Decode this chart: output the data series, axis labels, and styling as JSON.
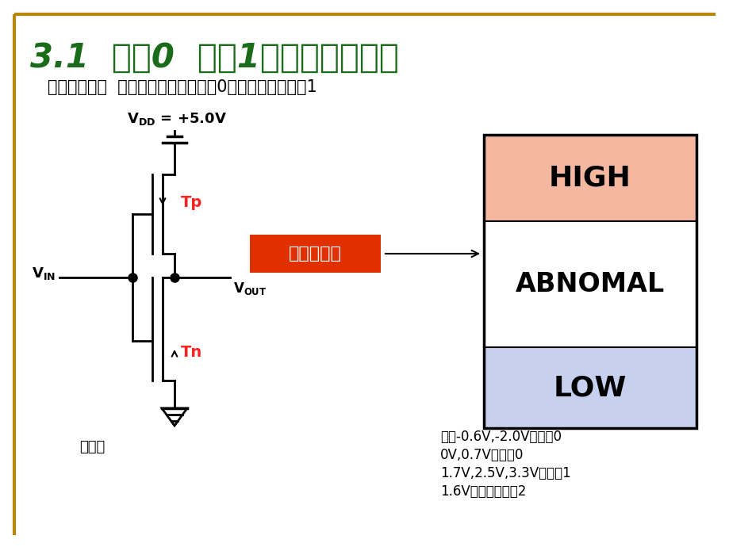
{
  "title": "3.1  逻辑0  逻辑1以及不确定逻辑",
  "title_color": "#1a6b1a",
  "subtitle": "不确定逻辑：  电路可将其解释为逻辑0也可以解释为逻辑1",
  "subtitle_color": "#000000",
  "bg_color": "#ffffff",
  "border_color": "#b8860b",
  "high_color": "#f4b8a0",
  "low_color": "#c8d0f0",
  "abnomal_color": "#ffffff",
  "box_label_high": "HIGH",
  "box_label_abnomal": "ABNOMAL",
  "box_label_low": "LOW",
  "red_box_text": "不确定逻辑",
  "red_box_color": "#e03000",
  "arrow_color": "#000000",
  "tp_text": "Tp",
  "tn_text": "Tn",
  "label_color": "#ff2020",
  "fanxiangqi": "反向器",
  "note_lines": [
    "因此-0.6V,-2.0V是逻辑0",
    "0V,0.7V是逻辑0",
    "1.7V,2.5V,3.3V为逻辑1",
    "1.6V为不确定逻辑2"
  ]
}
